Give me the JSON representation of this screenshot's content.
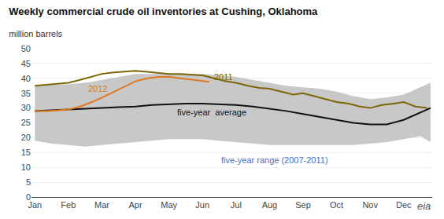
{
  "chart_data": {
    "type": "line",
    "title": "Weekly commercial crude oil inventories at Cushing, Oklahoma",
    "subtitle": "million barrels",
    "source_logo": "eia",
    "xlim": [
      -0.1,
      11.85
    ],
    "xticks": [
      {
        "value": 0,
        "label": "Jan"
      },
      {
        "value": 1,
        "label": "Feb"
      },
      {
        "value": 2,
        "label": "Mar"
      },
      {
        "value": 3,
        "label": "Apr"
      },
      {
        "value": 4,
        "label": "May"
      },
      {
        "value": 5,
        "label": "Jun"
      },
      {
        "value": 6,
        "label": "Jul"
      },
      {
        "value": 7,
        "label": "Aug"
      },
      {
        "value": 8,
        "label": "Sep"
      },
      {
        "value": 9,
        "label": "Oct"
      },
      {
        "value": 10,
        "label": "Nov"
      },
      {
        "value": 11,
        "label": "Dec"
      }
    ],
    "ylim": [
      0,
      50
    ],
    "yticks": [
      0,
      5,
      10,
      15,
      20,
      25,
      30,
      35,
      40,
      45,
      50
    ],
    "grid": "y",
    "series": [
      {
        "name": "five-year range (2007-2011)",
        "type": "range",
        "color": "#c8c8c8",
        "x": [
          0.0,
          0.5,
          1.0,
          1.5,
          2.0,
          2.5,
          3.0,
          3.5,
          4.0,
          4.5,
          5.0,
          5.5,
          6.0,
          6.5,
          7.0,
          7.5,
          8.0,
          8.5,
          9.0,
          9.5,
          10.0,
          10.5,
          11.0,
          11.5,
          11.8
        ],
        "upper": [
          37.5,
          37.8,
          38.0,
          38.5,
          39.5,
          40.5,
          41.5,
          41.5,
          41.5,
          41.5,
          41.5,
          41.0,
          40.5,
          39.5,
          38.5,
          37.5,
          37.0,
          36.5,
          35.5,
          34.0,
          33.0,
          33.5,
          34.5,
          37.0,
          38.5
        ],
        "lower": [
          19.0,
          18.0,
          17.5,
          17.0,
          17.5,
          18.0,
          18.5,
          19.0,
          19.5,
          19.5,
          19.5,
          19.0,
          18.5,
          18.0,
          17.5,
          17.5,
          17.5,
          17.5,
          17.5,
          17.5,
          18.0,
          18.5,
          19.5,
          20.5,
          18.5
        ]
      },
      {
        "name": "five-year  average",
        "type": "line",
        "color": "#111111",
        "x": [
          0.0,
          0.5,
          1.0,
          1.5,
          2.0,
          2.5,
          3.0,
          3.5,
          4.0,
          4.5,
          5.0,
          5.5,
          6.0,
          6.5,
          7.0,
          7.5,
          8.0,
          8.5,
          9.0,
          9.5,
          10.0,
          10.5,
          11.0,
          11.5,
          11.8
        ],
        "values": [
          29.0,
          29.2,
          29.5,
          29.8,
          30.0,
          30.3,
          30.5,
          31.0,
          31.3,
          31.5,
          31.5,
          31.3,
          31.0,
          30.5,
          29.8,
          29.0,
          28.0,
          27.0,
          26.0,
          25.0,
          24.5,
          24.5,
          26.0,
          28.5,
          30.0
        ]
      },
      {
        "name": "2011",
        "type": "line",
        "color": "#7d6608",
        "x": [
          0.0,
          0.35,
          0.7,
          1.0,
          1.35,
          1.7,
          2.0,
          2.35,
          2.7,
          3.0,
          3.35,
          3.7,
          4.0,
          4.35,
          4.7,
          5.0,
          5.35,
          5.7,
          6.0,
          6.35,
          6.7,
          7.0,
          7.35,
          7.7,
          8.0,
          8.35,
          8.7,
          9.0,
          9.35,
          9.7,
          10.0,
          10.35,
          10.7,
          11.0,
          11.35,
          11.7
        ],
        "values": [
          37.5,
          37.8,
          38.2,
          38.5,
          39.5,
          40.5,
          41.5,
          42.0,
          42.3,
          42.5,
          42.2,
          41.8,
          41.5,
          41.5,
          41.3,
          41.0,
          40.0,
          39.0,
          38.5,
          37.5,
          36.8,
          36.5,
          35.5,
          34.5,
          35.0,
          34.0,
          33.0,
          32.0,
          31.5,
          30.5,
          30.0,
          31.0,
          31.5,
          32.0,
          30.5,
          30.0
        ]
      },
      {
        "name": "2012",
        "type": "line",
        "color": "#e07820",
        "x": [
          0.0,
          0.35,
          0.7,
          1.0,
          1.35,
          1.7,
          2.0,
          2.35,
          2.7,
          3.0,
          3.35,
          3.7,
          4.0,
          4.35,
          4.7,
          5.0,
          5.2
        ],
        "values": [
          29.0,
          29.0,
          29.2,
          29.5,
          30.5,
          32.0,
          33.5,
          35.5,
          37.5,
          39.0,
          40.0,
          40.5,
          40.5,
          40.0,
          39.5,
          39.0,
          38.8
        ]
      }
    ],
    "annotations": [
      {
        "text": "2011",
        "x": 5.3,
        "y": 40.5,
        "color": "#7d6608"
      },
      {
        "text": "2012",
        "x": 1.55,
        "y": 36.5,
        "color": "#e07820"
      },
      {
        "text": "five-year  average",
        "x": 4.2,
        "y": 28.5,
        "color": "#111111"
      },
      {
        "text": "five-year range (2007-2011)",
        "x": 5.5,
        "y": 12.5,
        "color": "#4472c4"
      }
    ]
  }
}
